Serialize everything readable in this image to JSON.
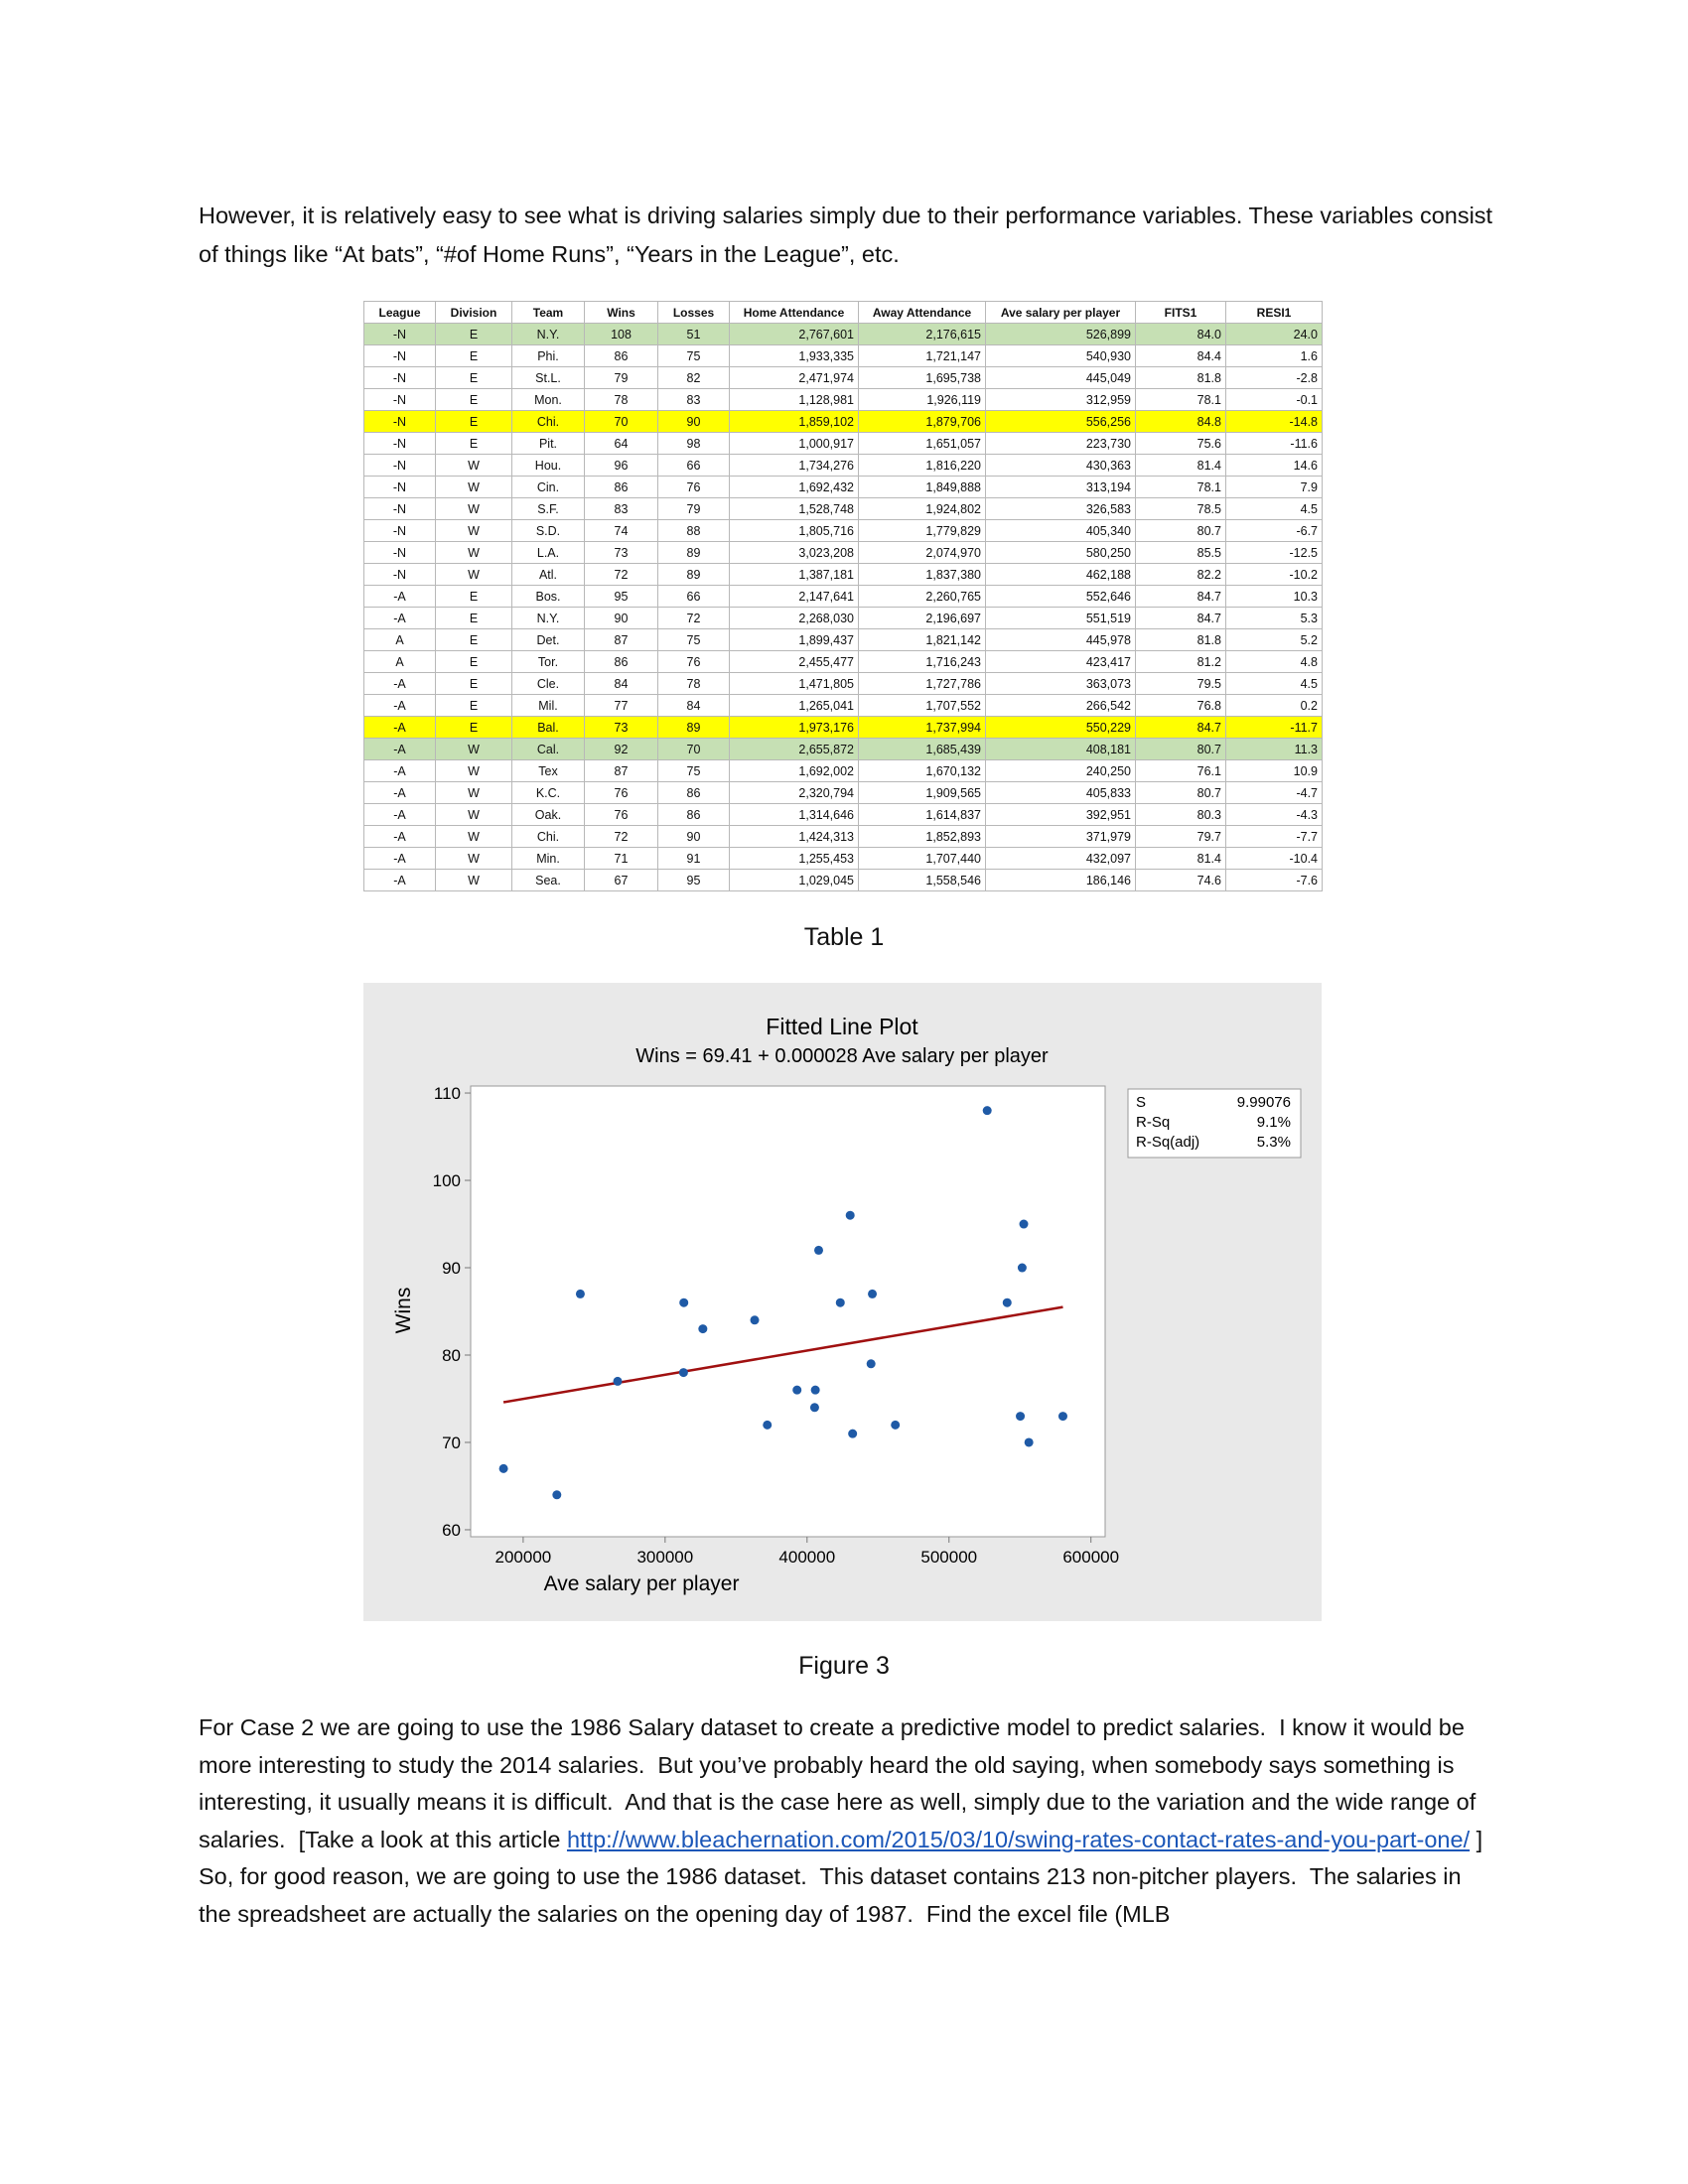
{
  "intro": "However, it is relatively easy to see what is driving salaries simply due to their performance variables. These variables consist of things like “At bats”, “#of Home Runs”, “Years in the League”, etc.",
  "table": {
    "headers": [
      "League",
      "Division",
      "Team",
      "Wins",
      "Losses",
      "Home Attendance",
      "Away Attendance",
      "Ave salary per player",
      "FITS1",
      "RESI1"
    ],
    "rows": [
      [
        "-N",
        "E",
        "N.Y.",
        "108",
        "51",
        "2,767,601",
        "2,176,615",
        "526,899",
        "84.0",
        "24.0"
      ],
      [
        "-N",
        "E",
        "Phi.",
        "86",
        "75",
        "1,933,335",
        "1,721,147",
        "540,930",
        "84.4",
        "1.6"
      ],
      [
        "-N",
        "E",
        "St.L.",
        "79",
        "82",
        "2,471,974",
        "1,695,738",
        "445,049",
        "81.8",
        "-2.8"
      ],
      [
        "-N",
        "E",
        "Mon.",
        "78",
        "83",
        "1,128,981",
        "1,926,119",
        "312,959",
        "78.1",
        "-0.1"
      ],
      [
        "-N",
        "E",
        "Chi.",
        "70",
        "90",
        "1,859,102",
        "1,879,706",
        "556,256",
        "84.8",
        "-14.8"
      ],
      [
        "-N",
        "E",
        "Pit.",
        "64",
        "98",
        "1,000,917",
        "1,651,057",
        "223,730",
        "75.6",
        "-11.6"
      ],
      [
        "-N",
        "W",
        "Hou.",
        "96",
        "66",
        "1,734,276",
        "1,816,220",
        "430,363",
        "81.4",
        "14.6"
      ],
      [
        "-N",
        "W",
        "Cin.",
        "86",
        "76",
        "1,692,432",
        "1,849,888",
        "313,194",
        "78.1",
        "7.9"
      ],
      [
        "-N",
        "W",
        "S.F.",
        "83",
        "79",
        "1,528,748",
        "1,924,802",
        "326,583",
        "78.5",
        "4.5"
      ],
      [
        "-N",
        "W",
        "S.D.",
        "74",
        "88",
        "1,805,716",
        "1,779,829",
        "405,340",
        "80.7",
        "-6.7"
      ],
      [
        "-N",
        "W",
        "L.A.",
        "73",
        "89",
        "3,023,208",
        "2,074,970",
        "580,250",
        "85.5",
        "-12.5"
      ],
      [
        "-N",
        "W",
        "Atl.",
        "72",
        "89",
        "1,387,181",
        "1,837,380",
        "462,188",
        "82.2",
        "-10.2"
      ],
      [
        "-A",
        "E",
        "Bos.",
        "95",
        "66",
        "2,147,641",
        "2,260,765",
        "552,646",
        "84.7",
        "10.3"
      ],
      [
        "-A",
        "E",
        "N.Y.",
        "90",
        "72",
        "2,268,030",
        "2,196,697",
        "551,519",
        "84.7",
        "5.3"
      ],
      [
        "A",
        "E",
        "Det.",
        "87",
        "75",
        "1,899,437",
        "1,821,142",
        "445,978",
        "81.8",
        "5.2"
      ],
      [
        "A",
        "E",
        "Tor.",
        "86",
        "76",
        "2,455,477",
        "1,716,243",
        "423,417",
        "81.2",
        "4.8"
      ],
      [
        "-A",
        "E",
        "Cle.",
        "84",
        "78",
        "1,471,805",
        "1,727,786",
        "363,073",
        "79.5",
        "4.5"
      ],
      [
        "-A",
        "E",
        "Mil.",
        "77",
        "84",
        "1,265,041",
        "1,707,552",
        "266,542",
        "76.8",
        "0.2"
      ],
      [
        "-A",
        "E",
        "Bal.",
        "73",
        "89",
        "1,973,176",
        "1,737,994",
        "550,229",
        "84.7",
        "-11.7"
      ],
      [
        "-A",
        "W",
        "Cal.",
        "92",
        "70",
        "2,655,872",
        "1,685,439",
        "408,181",
        "80.7",
        "11.3"
      ],
      [
        "-A",
        "W",
        "Tex",
        "87",
        "75",
        "1,692,002",
        "1,670,132",
        "240,250",
        "76.1",
        "10.9"
      ],
      [
        "-A",
        "W",
        "K.C.",
        "76",
        "86",
        "2,320,794",
        "1,909,565",
        "405,833",
        "80.7",
        "-4.7"
      ],
      [
        "-A",
        "W",
        "Oak.",
        "76",
        "86",
        "1,314,646",
        "1,614,837",
        "392,951",
        "80.3",
        "-4.3"
      ],
      [
        "-A",
        "W",
        "Chi.",
        "72",
        "90",
        "1,424,313",
        "1,852,893",
        "371,979",
        "79.7",
        "-7.7"
      ],
      [
        "-A",
        "W",
        "Min.",
        "71",
        "91",
        "1,255,453",
        "1,707,440",
        "432,097",
        "81.4",
        "-10.4"
      ],
      [
        "-A",
        "W",
        "Sea.",
        "67",
        "95",
        "1,029,045",
        "1,558,546",
        "186,146",
        "74.6",
        "-7.6"
      ]
    ],
    "highlight_rows": [
      {
        "row": 0,
        "color": "#c6e0b4"
      },
      {
        "row": 4,
        "color": "#ffff00"
      },
      {
        "row": 18,
        "color": "#ffff00"
      },
      {
        "row": 19,
        "color": "#c6e0b4"
      }
    ],
    "caption": "Table 1"
  },
  "chart_data": {
    "type": "scatter",
    "title": "Fitted Line Plot",
    "subtitle": "Wins = 69.41 + 0.000028 Ave salary per player",
    "x_label": "Ave salary per player",
    "y_label": "Wins",
    "x": [
      526899,
      540930,
      445049,
      312959,
      556256,
      223730,
      430363,
      313194,
      326583,
      405340,
      580250,
      462188,
      552646,
      551519,
      445978,
      423417,
      363073,
      266542,
      550229,
      408181,
      240250,
      405833,
      392951,
      371979,
      432097,
      186146
    ],
    "series": [
      {
        "name": "Wins",
        "color": "#1f5aa6",
        "values": [
          108,
          86,
          79,
          78,
          70,
          64,
          96,
          86,
          83,
          74,
          73,
          72,
          95,
          90,
          87,
          86,
          84,
          77,
          73,
          92,
          87,
          76,
          76,
          72,
          71,
          67
        ]
      }
    ],
    "fit_line": {
      "color": "#a01010",
      "x": [
        186146,
        580250
      ],
      "y": [
        74.6,
        85.5
      ]
    },
    "xlim": [
      163000,
      610000
    ],
    "ylim": [
      59.2,
      110.8
    ],
    "xticks": [
      200000,
      300000,
      400000,
      500000,
      600000
    ],
    "yticks": [
      60,
      70,
      80,
      90,
      100,
      110
    ],
    "stats": [
      {
        "label": "S",
        "value": "9.99076"
      },
      {
        "label": "R-Sq",
        "value": "9.1%"
      },
      {
        "label": "R-Sq(adj)",
        "value": "5.3%"
      }
    ],
    "caption": "Figure 3"
  },
  "closing": {
    "before_link": "For Case 2 we are going to use the 1986 Salary dataset to create a predictive model to predict salaries.  I know it would be more interesting to study the 2014 salaries.  But you’ve probably heard the old saying, when somebody says something is interesting, it usually means it is difficult.  And that is the case here as well, simply due to the variation and the wide range of salaries.  [Take a look at this article ",
    "link": "http://www.bleachernation.com/2015/03/10/swing-rates-contact-rates-and-you-part-one/",
    "after_link": " ] So, for good reason, we are going to use the 1986 dataset.  This dataset contains 213 non-pitcher players.  The salaries in the spreadsheet are actually the salaries on the opening day of 1987.  Find the excel file (MLB"
  }
}
